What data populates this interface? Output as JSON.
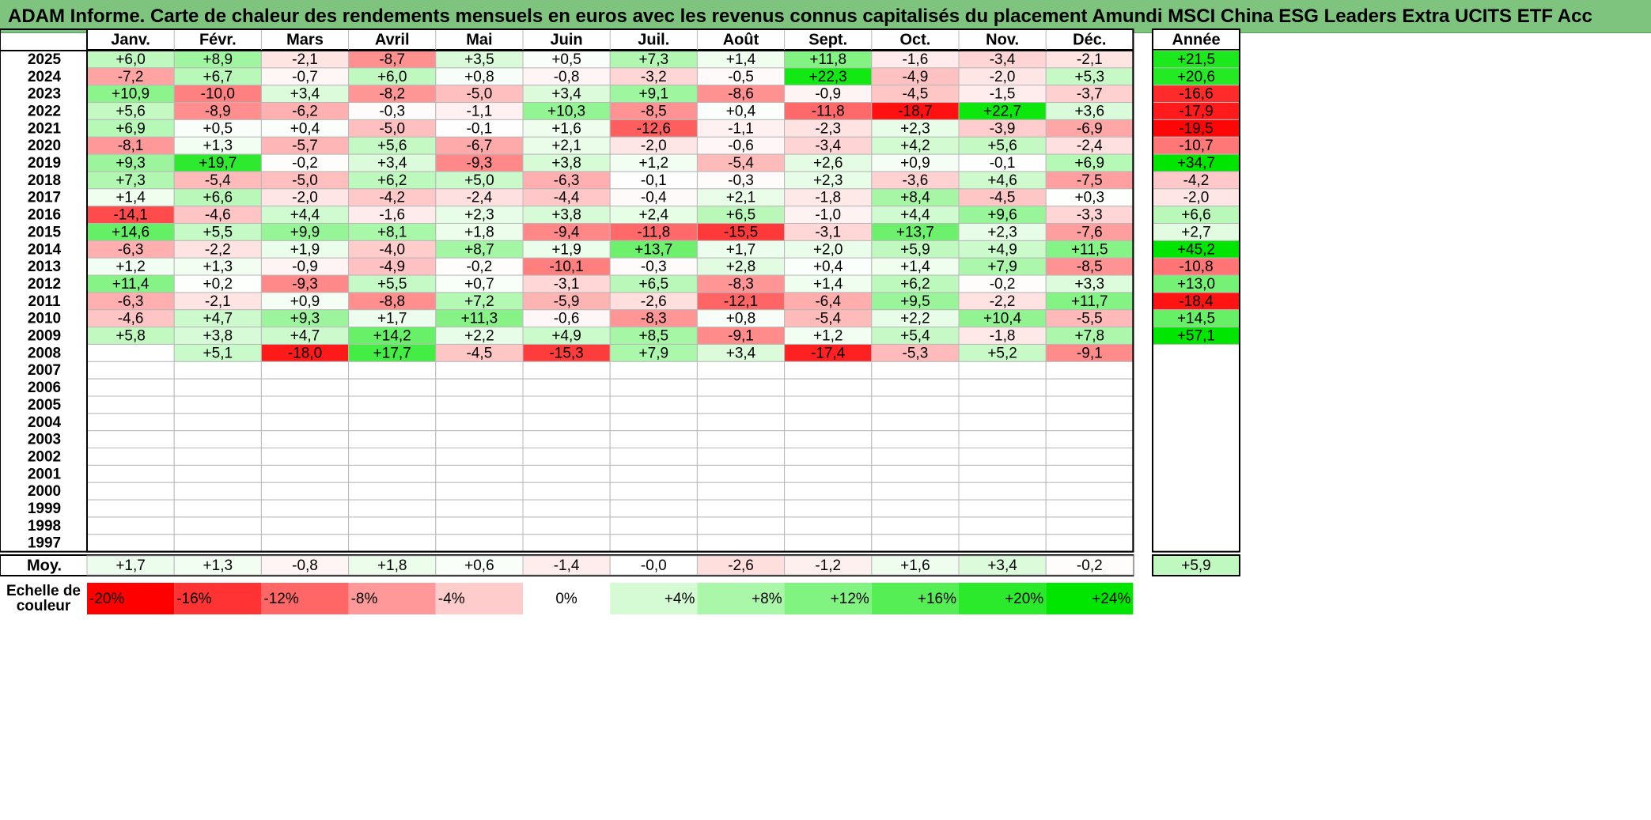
{
  "title": "ADAM Informe. Carte de chaleur des rendements mensuels en euros avec les revenus connus capitalisés du placement Amundi MSCI China ESG Leaders Extra UCITS ETF Acc",
  "chart_data": {
    "type": "heatmap",
    "title": "ADAM Informe. Carte de chaleur des rendements mensuels en euros avec les revenus connus capitalisés du placement Amundi MSCI China ESG Leaders Extra UCITS ETF Acc",
    "months": [
      "Janv.",
      "Févr.",
      "Mars",
      "Avril",
      "Mai",
      "Juin",
      "Juil.",
      "Août",
      "Sept.",
      "Oct.",
      "Nov.",
      "Déc."
    ],
    "year_header": "Année",
    "rows": [
      {
        "year": "2025",
        "values": [
          6.0,
          8.9,
          -2.1,
          -8.7,
          3.5,
          0.5,
          7.3,
          1.4,
          11.8,
          -1.6,
          -3.4,
          -2.1
        ],
        "annual": 21.5
      },
      {
        "year": "2024",
        "values": [
          -7.2,
          6.7,
          -0.7,
          6.0,
          0.8,
          -0.8,
          -3.2,
          -0.5,
          22.3,
          -4.9,
          -2.0,
          5.3
        ],
        "annual": 20.6
      },
      {
        "year": "2023",
        "values": [
          10.9,
          -10.0,
          3.4,
          -8.2,
          -5.0,
          3.4,
          9.1,
          -8.6,
          -0.9,
          -4.5,
          -1.5,
          -3.7
        ],
        "annual": -16.6
      },
      {
        "year": "2022",
        "values": [
          5.6,
          -8.9,
          -6.2,
          -0.3,
          -1.1,
          10.3,
          -8.5,
          0.4,
          -11.8,
          -18.7,
          22.7,
          3.6
        ],
        "annual": -17.9
      },
      {
        "year": "2021",
        "values": [
          6.9,
          0.5,
          0.4,
          -5.0,
          -0.1,
          1.6,
          -12.6,
          -1.1,
          -2.3,
          2.3,
          -3.9,
          -6.9
        ],
        "annual": -19.5
      },
      {
        "year": "2020",
        "values": [
          -8.1,
          1.3,
          -5.7,
          5.6,
          -6.7,
          2.1,
          -2.0,
          -0.6,
          -3.4,
          4.2,
          5.6,
          -2.4
        ],
        "annual": -10.7
      },
      {
        "year": "2019",
        "values": [
          9.3,
          19.7,
          -0.2,
          3.4,
          -9.3,
          3.8,
          1.2,
          -5.4,
          2.6,
          0.9,
          -0.1,
          6.9
        ],
        "annual": 34.7
      },
      {
        "year": "2018",
        "values": [
          7.3,
          -5.4,
          -5.0,
          6.2,
          5.0,
          -6.3,
          -0.1,
          -0.3,
          2.3,
          -3.6,
          4.6,
          -7.5
        ],
        "annual": -4.2
      },
      {
        "year": "2017",
        "values": [
          1.4,
          6.6,
          -2.0,
          -4.2,
          -2.4,
          -4.4,
          -0.4,
          2.1,
          -1.8,
          8.4,
          -4.5,
          0.3
        ],
        "annual": -2.0
      },
      {
        "year": "2016",
        "values": [
          -14.1,
          -4.6,
          4.4,
          -1.6,
          2.3,
          3.8,
          2.4,
          6.5,
          -1.0,
          4.4,
          9.6,
          -3.3
        ],
        "annual": 6.6
      },
      {
        "year": "2015",
        "values": [
          14.6,
          5.5,
          9.9,
          8.1,
          1.8,
          -9.4,
          -11.8,
          -15.5,
          -3.1,
          13.7,
          2.3,
          -7.6
        ],
        "annual": 2.7
      },
      {
        "year": "2014",
        "values": [
          -6.3,
          -2.2,
          1.9,
          -4.0,
          8.7,
          1.9,
          13.7,
          1.7,
          2.0,
          5.9,
          4.9,
          11.5
        ],
        "annual": 45.2
      },
      {
        "year": "2013",
        "values": [
          1.2,
          1.3,
          -0.9,
          -4.9,
          -0.2,
          -10.1,
          -0.3,
          2.8,
          0.4,
          1.4,
          7.9,
          -8.5
        ],
        "annual": -10.8
      },
      {
        "year": "2012",
        "values": [
          11.4,
          0.2,
          -9.3,
          5.5,
          0.7,
          -3.1,
          6.5,
          -8.3,
          1.4,
          6.2,
          -0.2,
          3.3
        ],
        "annual": 13.0
      },
      {
        "year": "2011",
        "values": [
          -6.3,
          -2.1,
          0.9,
          -8.8,
          7.2,
          -5.9,
          -2.6,
          -12.1,
          -6.4,
          9.5,
          -2.2,
          11.7
        ],
        "annual": -18.4
      },
      {
        "year": "2010",
        "values": [
          -4.6,
          4.7,
          9.3,
          1.7,
          11.3,
          -0.6,
          -8.3,
          0.8,
          -5.4,
          2.2,
          10.4,
          -5.5
        ],
        "annual": 14.5
      },
      {
        "year": "2009",
        "values": [
          5.8,
          3.8,
          4.7,
          14.2,
          2.2,
          4.9,
          8.5,
          -9.1,
          1.2,
          5.4,
          -1.8,
          7.8
        ],
        "annual": 57.1
      },
      {
        "year": "2008",
        "values": [
          null,
          5.1,
          -18.0,
          17.7,
          -4.5,
          -15.3,
          7.9,
          3.4,
          -17.4,
          -5.3,
          5.2,
          -9.1
        ],
        "annual": null
      },
      {
        "year": "2007",
        "values": [
          null,
          null,
          null,
          null,
          null,
          null,
          null,
          null,
          null,
          null,
          null,
          null
        ],
        "annual": null
      },
      {
        "year": "2006",
        "values": [
          null,
          null,
          null,
          null,
          null,
          null,
          null,
          null,
          null,
          null,
          null,
          null
        ],
        "annual": null
      },
      {
        "year": "2005",
        "values": [
          null,
          null,
          null,
          null,
          null,
          null,
          null,
          null,
          null,
          null,
          null,
          null
        ],
        "annual": null
      },
      {
        "year": "2004",
        "values": [
          null,
          null,
          null,
          null,
          null,
          null,
          null,
          null,
          null,
          null,
          null,
          null
        ],
        "annual": null
      },
      {
        "year": "2003",
        "values": [
          null,
          null,
          null,
          null,
          null,
          null,
          null,
          null,
          null,
          null,
          null,
          null
        ],
        "annual": null
      },
      {
        "year": "2002",
        "values": [
          null,
          null,
          null,
          null,
          null,
          null,
          null,
          null,
          null,
          null,
          null,
          null
        ],
        "annual": null
      },
      {
        "year": "2001",
        "values": [
          null,
          null,
          null,
          null,
          null,
          null,
          null,
          null,
          null,
          null,
          null,
          null
        ],
        "annual": null
      },
      {
        "year": "2000",
        "values": [
          null,
          null,
          null,
          null,
          null,
          null,
          null,
          null,
          null,
          null,
          null,
          null
        ],
        "annual": null
      },
      {
        "year": "1999",
        "values": [
          null,
          null,
          null,
          null,
          null,
          null,
          null,
          null,
          null,
          null,
          null,
          null
        ],
        "annual": null
      },
      {
        "year": "1998",
        "values": [
          null,
          null,
          null,
          null,
          null,
          null,
          null,
          null,
          null,
          null,
          null,
          null
        ],
        "annual": null
      },
      {
        "year": "1997",
        "values": [
          null,
          null,
          null,
          null,
          null,
          null,
          null,
          null,
          null,
          null,
          null,
          null
        ],
        "annual": null
      }
    ],
    "average": {
      "label": "Moy.",
      "values": [
        1.7,
        1.3,
        -0.8,
        1.8,
        0.6,
        -1.4,
        -0.0,
        -2.6,
        -1.2,
        1.6,
        3.4,
        -0.2
      ],
      "annual": 5.9
    },
    "color_scale": {
      "label_line1": "Echelle de",
      "label_line2": "couleur",
      "labels": [
        "-20%",
        "-16%",
        "-12%",
        "-8%",
        "-4%",
        "0%",
        "+4%",
        "+8%",
        "+12%",
        "+16%",
        "+20%",
        "+24%"
      ],
      "values": [
        -20,
        -16,
        -12,
        -8,
        -4,
        0,
        4,
        8,
        12,
        16,
        20,
        24
      ],
      "negative_color": "#ff0000",
      "neutral_color": "#ffffff",
      "positive_color": "#00e600"
    }
  }
}
